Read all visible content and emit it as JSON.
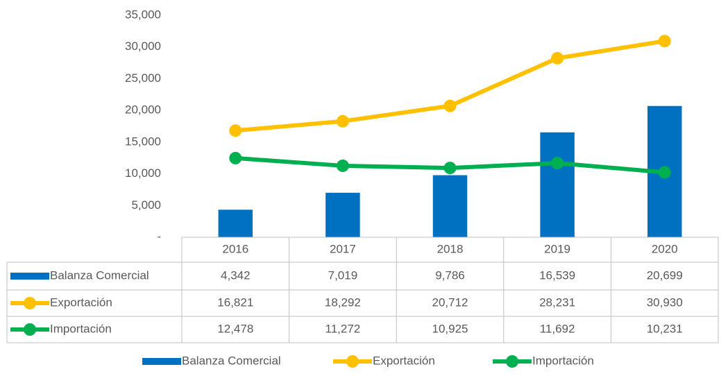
{
  "chart_data": {
    "type": "bar",
    "categories": [
      "2016",
      "2017",
      "2018",
      "2019",
      "2020"
    ],
    "series": [
      {
        "name": "Balanza Comercial",
        "type": "bar",
        "color": "#0070c0",
        "values": [
          4342,
          7019,
          9786,
          16539,
          20699
        ],
        "value_labels": [
          "4,342",
          "7,019",
          "9,786",
          "16,539",
          "20,699"
        ]
      },
      {
        "name": "Exportación",
        "type": "line",
        "color": "#ffc000",
        "values": [
          16821,
          18292,
          20712,
          28231,
          30930
        ],
        "value_labels": [
          "16,821",
          "18,292",
          "20,712",
          "28,231",
          "30,930"
        ]
      },
      {
        "name": "Importación",
        "type": "line",
        "color": "#00b050",
        "values": [
          12478,
          11272,
          10925,
          11692,
          10231
        ],
        "value_labels": [
          "12,478",
          "11,272",
          "10,925",
          "11,692",
          "10,231"
        ]
      }
    ],
    "ylim": [
      0,
      35000
    ],
    "yticks": [
      {
        "value": 0,
        "label": "-"
      },
      {
        "value": 5000,
        "label": "5,000"
      },
      {
        "value": 10000,
        "label": "10,000"
      },
      {
        "value": 15000,
        "label": "15,000"
      },
      {
        "value": 20000,
        "label": "20,000"
      },
      {
        "value": 25000,
        "label": "25,000"
      },
      {
        "value": 30000,
        "label": "30,000"
      },
      {
        "value": 35000,
        "label": "35,000"
      }
    ],
    "grid": false,
    "data_table": true,
    "legend": "bottom"
  }
}
